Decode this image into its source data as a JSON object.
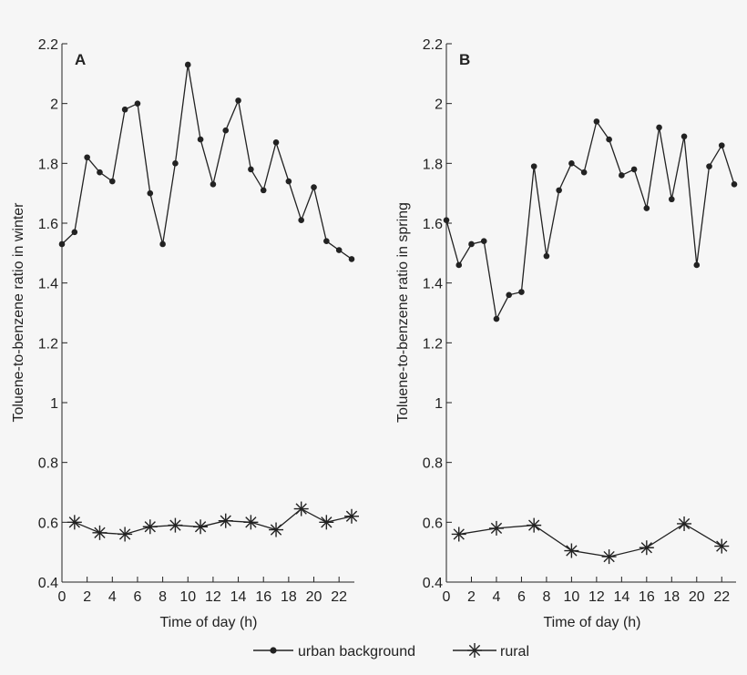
{
  "figure": {
    "legend": {
      "urban_label": "urban background",
      "rural_label": "rural"
    }
  },
  "chart_data": [
    {
      "type": "line",
      "panel_label": "A",
      "xlabel": "Time of day (h)",
      "ylabel": "Toluene-to-benzene ratio in winter",
      "xlim": [
        0,
        23
      ],
      "ylim": [
        0.4,
        2.2
      ],
      "x_ticks": [
        0,
        2,
        4,
        6,
        8,
        10,
        12,
        14,
        16,
        18,
        20,
        22
      ],
      "x_tick_labels": [
        "0",
        "2",
        "4",
        "6",
        "8",
        "10",
        "12",
        "14",
        "16",
        "18",
        "20",
        "22"
      ],
      "y_ticks": [
        0.4,
        0.6,
        0.8,
        1.0,
        1.2,
        1.4,
        1.6,
        1.8,
        2.0,
        2.2
      ],
      "y_tick_labels": [
        "0.4",
        "0.6",
        "0.8",
        "1",
        "1.2",
        "1.4",
        "1.6",
        "1.8",
        "2",
        "2.2"
      ],
      "series": [
        {
          "name": "urban background",
          "marker": "dot",
          "x": [
            0,
            1,
            2,
            3,
            4,
            5,
            6,
            7,
            8,
            9,
            10,
            11,
            12,
            13,
            14,
            15,
            16,
            17,
            18,
            19,
            20,
            21,
            22,
            23
          ],
          "values": [
            1.53,
            1.57,
            1.82,
            1.77,
            1.74,
            1.98,
            2.0,
            1.7,
            1.53,
            1.8,
            2.13,
            1.88,
            1.73,
            1.91,
            2.01,
            1.78,
            1.71,
            1.87,
            1.74,
            1.61,
            1.72,
            1.54,
            1.51,
            1.48
          ]
        },
        {
          "name": "rural",
          "marker": "asterisk",
          "x": [
            1,
            3,
            5,
            7,
            9,
            11,
            13,
            15,
            17,
            19,
            21,
            23
          ],
          "values": [
            0.6,
            0.565,
            0.56,
            0.585,
            0.59,
            0.585,
            0.605,
            0.6,
            0.575,
            0.645,
            0.6,
            0.62
          ]
        }
      ]
    },
    {
      "type": "line",
      "panel_label": "B",
      "xlabel": "Time of day (h)",
      "ylabel": "Toluene-to-benzene ratio in spring",
      "xlim": [
        0,
        23
      ],
      "ylim": [
        0.4,
        2.2
      ],
      "x_ticks": [
        0,
        2,
        4,
        6,
        8,
        10,
        12,
        14,
        16,
        18,
        20,
        22
      ],
      "x_tick_labels": [
        "0",
        "2",
        "4",
        "6",
        "8",
        "10",
        "12",
        "14",
        "16",
        "18",
        "20",
        "22"
      ],
      "y_ticks": [
        0.4,
        0.6,
        0.8,
        1.0,
        1.2,
        1.4,
        1.6,
        1.8,
        2.0,
        2.2
      ],
      "y_tick_labels": [
        "0.4",
        "0.6",
        "0.8",
        "1",
        "1.2",
        "1.4",
        "1.6",
        "1.8",
        "2",
        "2.2"
      ],
      "series": [
        {
          "name": "urban background",
          "marker": "dot",
          "x": [
            0,
            1,
            2,
            3,
            4,
            5,
            6,
            7,
            8,
            9,
            10,
            11,
            12,
            13,
            14,
            15,
            16,
            17,
            18,
            19,
            20,
            21,
            22,
            23
          ],
          "values": [
            1.61,
            1.46,
            1.53,
            1.54,
            1.28,
            1.36,
            1.37,
            1.79,
            1.49,
            1.71,
            1.8,
            1.77,
            1.94,
            1.88,
            1.76,
            1.78,
            1.65,
            1.92,
            1.68,
            1.89,
            1.46,
            1.79,
            1.86,
            1.73
          ]
        },
        {
          "name": "rural",
          "marker": "asterisk",
          "x": [
            1,
            4,
            7,
            10,
            13,
            16,
            19,
            22
          ],
          "values": [
            0.56,
            0.58,
            0.59,
            0.505,
            0.485,
            0.515,
            0.595,
            0.52
          ]
        }
      ]
    }
  ]
}
